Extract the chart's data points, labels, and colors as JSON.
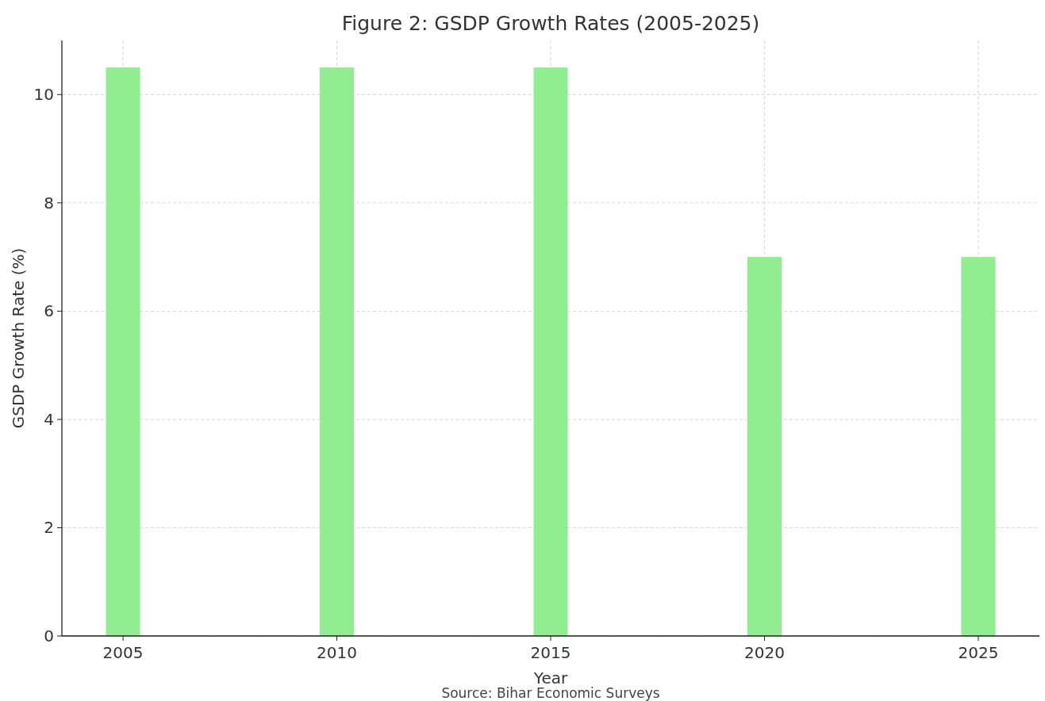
{
  "chart_data": {
    "type": "bar",
    "title": "Figure 2: GSDP Growth Rates (2005-2025)",
    "xlabel": "Year",
    "ylabel": "GSDP Growth Rate (%)",
    "x": [
      2005,
      2010,
      2015,
      2020,
      2025
    ],
    "values": [
      10.5,
      10.5,
      10.5,
      7,
      7
    ],
    "color": "#90ee90",
    "xlim": [
      2003.57,
      2026.43
    ],
    "xticks": [
      2005,
      2010,
      2015,
      2020,
      2025
    ],
    "ylim": [
      0,
      11
    ],
    "yticks": [
      0,
      2,
      4,
      6,
      8,
      10
    ],
    "grid": true,
    "annotations": [
      "Source: Bihar Economic Surveys"
    ]
  }
}
